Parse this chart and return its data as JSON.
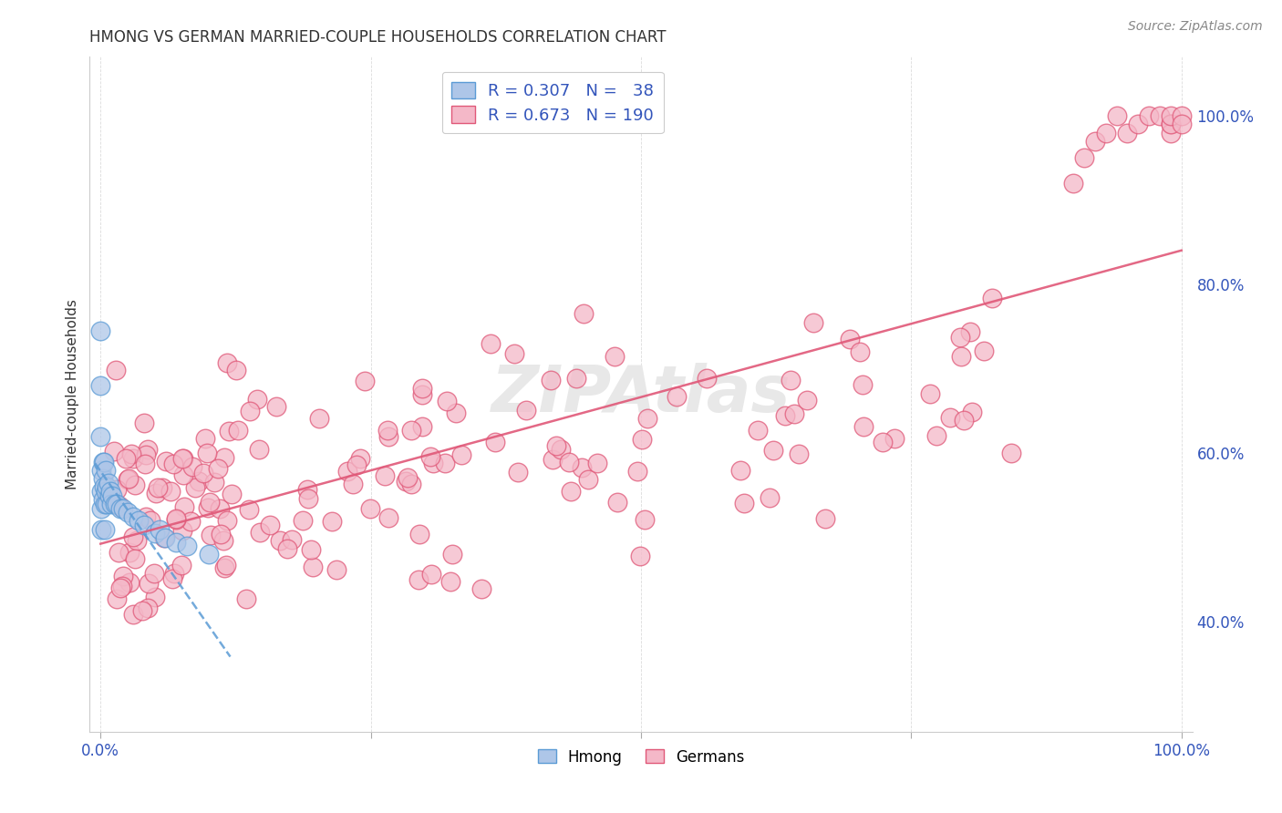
{
  "title": "HMONG VS GERMAN MARRIED-COUPLE HOUSEHOLDS CORRELATION CHART",
  "source": "Source: ZipAtlas.com",
  "ylabel": "Married-couple Households",
  "hmong_color": "#aec6e8",
  "hmong_edge_color": "#5b9bd5",
  "german_color": "#f4b8c8",
  "german_edge_color": "#e05878",
  "watermark": "ZIPAtlas",
  "legend_r1": "R = 0.307",
  "legend_n1": "N =  38",
  "legend_r2": "R = 0.673",
  "legend_n2": "N = 190",
  "text_blue": "#3355bb",
  "text_dark": "#333333",
  "grid_color": "#cccccc",
  "source_color": "#888888"
}
